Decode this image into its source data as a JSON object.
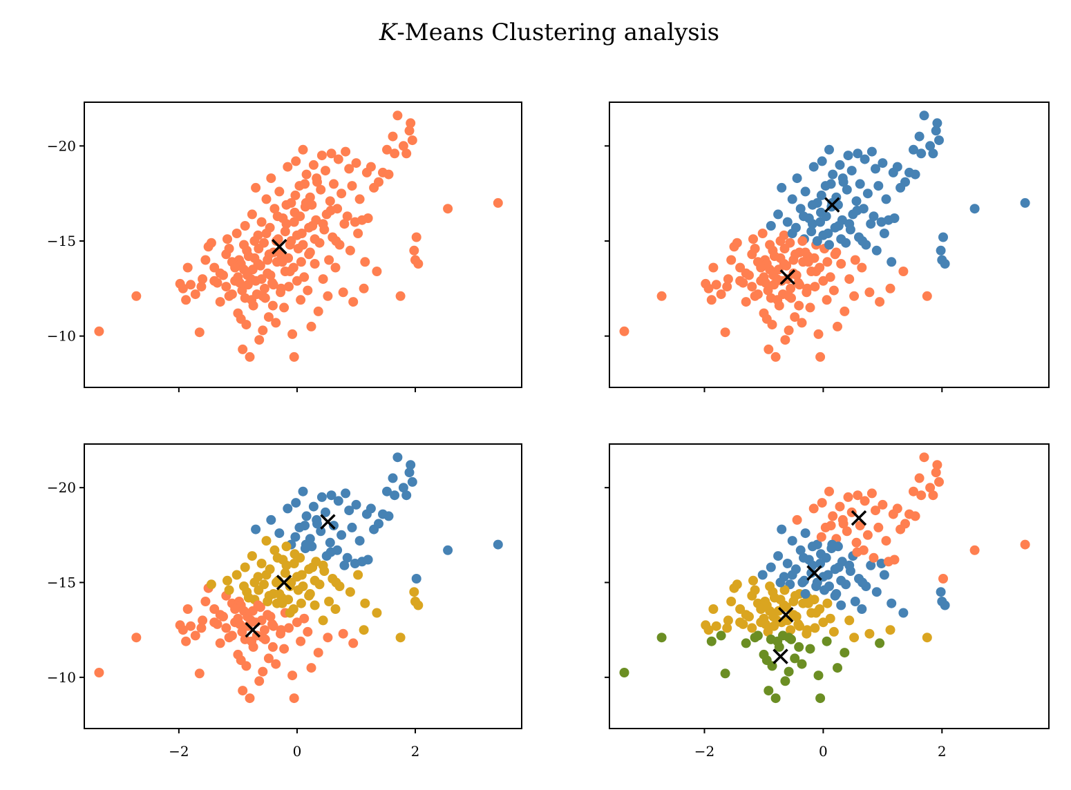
{
  "figure": {
    "title_italic": "K",
    "title_rest": "-Means Clustering analysis"
  },
  "colors": {
    "cluster": [
      "#FF7F50",
      "#4682B4",
      "#DAA520",
      "#6B8E23"
    ],
    "centroid": "#000000",
    "axes": "#000000"
  },
  "axes_shared": {
    "xlim": [
      -3.6,
      3.8
    ],
    "ylim": [
      -7.3,
      -22.3
    ],
    "y_inverted": true,
    "xticks": [
      -2,
      0,
      2
    ],
    "yticks": [
      -20,
      -15,
      -10
    ],
    "xtick_labels": [
      "−2",
      "0",
      "2"
    ],
    "ytick_labels": [
      "−20",
      "−15",
      "−10"
    ]
  },
  "chart_data": [
    {
      "type": "scatter",
      "k": 1,
      "centroids": [
        {
          "cluster": 0,
          "x": -0.3,
          "y": -14.7
        }
      ]
    },
    {
      "type": "scatter",
      "k": 2,
      "centroids": [
        {
          "cluster": 1,
          "x": 0.15,
          "y": -16.9
        },
        {
          "cluster": 0,
          "x": -0.6,
          "y": -13.1
        }
      ]
    },
    {
      "type": "scatter",
      "k": 3,
      "centroids": [
        {
          "cluster": 1,
          "x": 0.52,
          "y": -18.2
        },
        {
          "cluster": 2,
          "x": -0.22,
          "y": -15.0
        },
        {
          "cluster": 0,
          "x": -0.75,
          "y": -12.5
        }
      ]
    },
    {
      "type": "scatter",
      "k": 4,
      "centroids": [
        {
          "cluster": 0,
          "x": 0.6,
          "y": -18.4
        },
        {
          "cluster": 1,
          "x": -0.15,
          "y": -15.5
        },
        {
          "cluster": 2,
          "x": -0.63,
          "y": -13.3
        },
        {
          "cluster": 3,
          "x": -0.72,
          "y": -11.1
        }
      ]
    }
  ],
  "points": [
    [
      -3.35,
      -10.25
    ],
    [
      -2.72,
      -12.1
    ],
    [
      -1.98,
      -12.75
    ],
    [
      -1.93,
      -12.5
    ],
    [
      -1.85,
      -13.6
    ],
    [
      -1.8,
      -12.7
    ],
    [
      -1.88,
      -11.9
    ],
    [
      -1.72,
      -12.2
    ],
    [
      -1.65,
      -10.2
    ],
    [
      -1.6,
      -13.0
    ],
    [
      -1.55,
      -14.0
    ],
    [
      -1.62,
      -12.6
    ],
    [
      -1.5,
      -14.7
    ],
    [
      -1.45,
      -14.9
    ],
    [
      -1.4,
      -13.6
    ],
    [
      -1.35,
      -12.8
    ],
    [
      -1.3,
      -11.8
    ],
    [
      -1.25,
      -13.2
    ],
    [
      -1.2,
      -14.3
    ],
    [
      -1.18,
      -15.1
    ],
    [
      -1.15,
      -12.1
    ],
    [
      -1.1,
      -13.9
    ],
    [
      -1.05,
      -12.9
    ],
    [
      -1.02,
      -15.4
    ],
    [
      -1.0,
      -11.2
    ],
    [
      -0.98,
      -14.0
    ],
    [
      -0.95,
      -10.9
    ],
    [
      -0.93,
      -12.4
    ],
    [
      -0.92,
      -9.3
    ],
    [
      -0.9,
      -13.5
    ],
    [
      -0.88,
      -15.8
    ],
    [
      -0.86,
      -10.6
    ],
    [
      -0.85,
      -14.5
    ],
    [
      -0.83,
      -12.7
    ],
    [
      -0.8,
      -8.9
    ],
    [
      -0.78,
      -13.0
    ],
    [
      -0.76,
      -16.4
    ],
    [
      -0.74,
      -11.6
    ],
    [
      -0.72,
      -14.1
    ],
    [
      -0.7,
      -17.8
    ],
    [
      -0.68,
      -12.2
    ],
    [
      -0.66,
      -15.3
    ],
    [
      -0.64,
      -9.8
    ],
    [
      -0.62,
      -13.7
    ],
    [
      -0.6,
      -16.0
    ],
    [
      -0.58,
      -10.3
    ],
    [
      -0.56,
      -14.9
    ],
    [
      -0.54,
      -12.0
    ],
    [
      -0.52,
      -17.2
    ],
    [
      -0.5,
      -13.3
    ],
    [
      -0.48,
      -11.0
    ],
    [
      -0.46,
      -15.7
    ],
    [
      -0.44,
      -18.3
    ],
    [
      -0.42,
      -12.8
    ],
    [
      -0.4,
      -14.4
    ],
    [
      -0.38,
      -16.7
    ],
    [
      -0.36,
      -10.7
    ],
    [
      -0.34,
      -13.9
    ],
    [
      -0.32,
      -15.1
    ],
    [
      -0.3,
      -17.6
    ],
    [
      -0.28,
      -12.3
    ],
    [
      -0.26,
      -14.2
    ],
    [
      -0.24,
      -16.2
    ],
    [
      -0.22,
      -11.5
    ],
    [
      -0.2,
      -13.4
    ],
    [
      -0.18,
      -15.9
    ],
    [
      -0.16,
      -18.9
    ],
    [
      -0.14,
      -12.6
    ],
    [
      -0.12,
      -14.8
    ],
    [
      -0.1,
      -17.0
    ],
    [
      -0.08,
      -10.1
    ],
    [
      -0.06,
      -13.6
    ],
    [
      -0.05,
      -8.9
    ],
    [
      -0.04,
      -16.5
    ],
    [
      -0.02,
      -19.2
    ],
    [
      0.0,
      -12.9
    ],
    [
      0.02,
      -14.6
    ],
    [
      0.04,
      -17.9
    ],
    [
      0.06,
      -11.9
    ],
    [
      0.08,
      -15.4
    ],
    [
      0.1,
      -19.8
    ],
    [
      0.12,
      -13.1
    ],
    [
      0.14,
      -16.8
    ],
    [
      0.16,
      -18.5
    ],
    [
      0.18,
      -12.4
    ],
    [
      0.2,
      -14.3
    ],
    [
      0.22,
      -17.3
    ],
    [
      0.24,
      -10.5
    ],
    [
      0.26,
      -15.8
    ],
    [
      0.28,
      -19.0
    ],
    [
      0.3,
      -13.8
    ],
    [
      0.32,
      -16.1
    ],
    [
      0.34,
      -18.1
    ],
    [
      0.36,
      -11.3
    ],
    [
      0.38,
      -14.9
    ],
    [
      0.4,
      -17.7
    ],
    [
      0.42,
      -19.5
    ],
    [
      0.44,
      -13.0
    ],
    [
      0.46,
      -15.6
    ],
    [
      0.48,
      -18.7
    ],
    [
      0.5,
      -16.4
    ],
    [
      0.52,
      -12.1
    ],
    [
      0.54,
      -14.0
    ],
    [
      0.56,
      -17.1
    ],
    [
      0.58,
      -19.6
    ],
    [
      0.6,
      -15.2
    ],
    [
      0.62,
      -18.0
    ],
    [
      0.65,
      -13.6
    ],
    [
      0.68,
      -16.7
    ],
    [
      0.7,
      -19.3
    ],
    [
      0.72,
      -14.8
    ],
    [
      0.75,
      -17.5
    ],
    [
      0.78,
      -12.3
    ],
    [
      0.8,
      -15.9
    ],
    [
      0.82,
      -19.7
    ],
    [
      0.85,
      -16.3
    ],
    [
      0.88,
      -18.8
    ],
    [
      0.9,
      -14.5
    ],
    [
      0.93,
      -17.9
    ],
    [
      0.95,
      -11.8
    ],
    [
      0.98,
      -16.0
    ],
    [
      1.0,
      -19.1
    ],
    [
      1.03,
      -15.4
    ],
    [
      1.06,
      -17.2
    ],
    [
      1.1,
      -16.1
    ],
    [
      1.13,
      -12.5
    ],
    [
      1.15,
      -13.9
    ],
    [
      1.18,
      -18.6
    ],
    [
      1.2,
      -16.2
    ],
    [
      1.25,
      -18.9
    ],
    [
      1.3,
      -17.8
    ],
    [
      1.35,
      -13.4
    ],
    [
      1.38,
      -18.1
    ],
    [
      1.45,
      -18.6
    ],
    [
      1.52,
      -19.8
    ],
    [
      1.55,
      -18.5
    ],
    [
      1.62,
      -20.5
    ],
    [
      1.65,
      -19.6
    ],
    [
      1.7,
      -21.6
    ],
    [
      1.75,
      -12.1
    ],
    [
      1.8,
      -20.0
    ],
    [
      1.85,
      -19.6
    ],
    [
      1.9,
      -20.8
    ],
    [
      1.92,
      -21.2
    ],
    [
      1.95,
      -20.3
    ],
    [
      1.98,
      -14.5
    ],
    [
      2.0,
      -14.0
    ],
    [
      2.02,
      -15.2
    ],
    [
      2.05,
      -13.8
    ],
    [
      2.55,
      -16.7
    ],
    [
      3.4,
      -17.0
    ],
    [
      -1.2,
      -12.6
    ],
    [
      -1.1,
      -12.2
    ],
    [
      -1.0,
      -13.1
    ],
    [
      -0.95,
      -13.8
    ],
    [
      -0.88,
      -12.0
    ],
    [
      -0.82,
      -14.2
    ],
    [
      -0.75,
      -13.5
    ],
    [
      -0.7,
      -12.9
    ],
    [
      -0.65,
      -14.6
    ],
    [
      -0.6,
      -13.0
    ],
    [
      -0.55,
      -12.5
    ],
    [
      -0.5,
      -14.0
    ],
    [
      -0.45,
      -13.2
    ],
    [
      -0.4,
      -12.7
    ],
    [
      -0.35,
      -15.0
    ],
    [
      -0.3,
      -14.4
    ],
    [
      -0.25,
      -13.9
    ],
    [
      -0.2,
      -15.5
    ],
    [
      -0.15,
      -14.1
    ],
    [
      -0.1,
      -15.0
    ],
    [
      -0.05,
      -16.0
    ],
    [
      0.0,
      -15.3
    ],
    [
      0.05,
      -16.3
    ],
    [
      0.1,
      -14.8
    ],
    [
      0.15,
      -17.0
    ],
    [
      0.2,
      -15.7
    ],
    [
      0.25,
      -16.9
    ],
    [
      0.3,
      -15.1
    ],
    [
      -1.4,
      -12.9
    ],
    [
      -1.3,
      -13.3
    ],
    [
      -1.15,
      -14.6
    ],
    [
      -1.05,
      -13.6
    ],
    [
      -0.97,
      -12.8
    ],
    [
      -0.9,
      -14.8
    ],
    [
      -0.84,
      -13.2
    ],
    [
      -0.77,
      -11.9
    ],
    [
      -0.72,
      -15.0
    ],
    [
      -0.66,
      -13.8
    ],
    [
      -0.58,
      -12.1
    ],
    [
      -0.52,
      -15.4
    ],
    [
      -0.47,
      -14.3
    ],
    [
      -0.41,
      -11.6
    ],
    [
      -0.33,
      -16.3
    ],
    [
      -0.27,
      -12.5
    ],
    [
      -0.18,
      -16.9
    ],
    [
      -0.12,
      -13.4
    ],
    [
      -0.03,
      -17.4
    ],
    [
      0.07,
      -13.9
    ],
    [
      0.13,
      -18.0
    ],
    [
      0.22,
      -14.4
    ],
    [
      0.33,
      -18.3
    ],
    [
      0.44,
      -15.9
    ],
    [
      0.57,
      -16.6
    ],
    [
      0.66,
      -15.0
    ]
  ]
}
